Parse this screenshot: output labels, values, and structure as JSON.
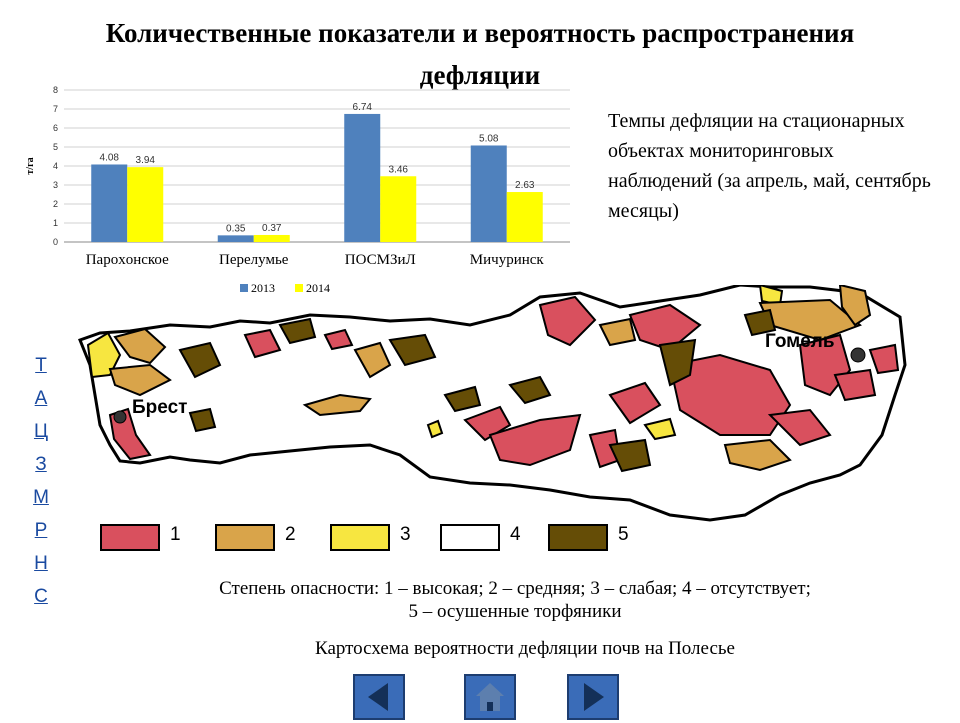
{
  "page": {
    "title_line1": "Количественные показатели и вероятность распространения",
    "title_line2": "дефляции"
  },
  "description": "Темпы дефляции на стационарных объектах мониторинговых наблюдений (за апрель, май, сентябрь месяцы)",
  "side_nav": [
    "Т",
    "А",
    "Ц",
    "З",
    "М",
    "Р",
    "Н",
    "С"
  ],
  "chart_data": {
    "type": "bar",
    "categories": [
      "Пароxонское",
      "Перелумье",
      "ПОСМЗиЛ",
      "Мичуринск"
    ],
    "series": [
      {
        "name": "2013",
        "values": [
          4.08,
          0.35,
          6.74,
          5.08
        ],
        "color": "#4f81bd"
      },
      {
        "name": "2014",
        "values": [
          3.94,
          0.37,
          3.46,
          2.63
        ],
        "color": "#ffff00"
      }
    ],
    "title": "",
    "xlabel": "",
    "ylabel": "т/га",
    "ylim": [
      0,
      8
    ],
    "yticks": [
      0,
      1,
      2,
      3,
      4,
      5,
      6,
      7,
      8
    ],
    "grid": true,
    "legend": "bottom",
    "data_labels": true
  },
  "map": {
    "cities": [
      "Брест",
      "Гомель"
    ],
    "colors": {
      "1": "#d9505e",
      "2": "#d9a44a",
      "3": "#f7e640",
      "4": "#ffffff",
      "5": "#654d06"
    }
  },
  "legend": [
    {
      "label": "1",
      "color": "#d9505e"
    },
    {
      "label": "2",
      "color": "#d9a44a"
    },
    {
      "label": "3",
      "color": "#f7e640"
    },
    {
      "label": "4",
      "color": "#ffffff"
    },
    {
      "label": "5",
      "color": "#654d06"
    }
  ],
  "caption": {
    "danger_line1": "Степень опасности: 1 – высокая; 2 – средняя; 3 – слабая; 4 – отсутствует;",
    "danger_line2": "5 – осушенные торфяники",
    "map_caption": "Картосхема вероятности дефляции почв на Полесье"
  },
  "nav": [
    {
      "name": "back",
      "icon": "arrow-left-icon"
    },
    {
      "name": "home",
      "icon": "home-icon"
    },
    {
      "name": "forward",
      "icon": "arrow-right-icon"
    }
  ]
}
